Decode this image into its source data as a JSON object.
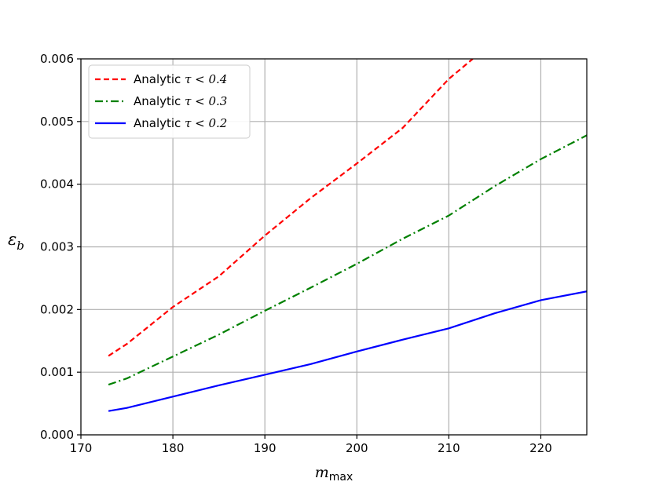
{
  "chart_data": {
    "type": "line",
    "title": "",
    "xlabel": {
      "main": "m",
      "sub": "max"
    },
    "ylabel": {
      "main": "ε",
      "sub": "b"
    },
    "xlim": [
      170,
      225
    ],
    "ylim": [
      0,
      0.006
    ],
    "xticks": [
      170,
      180,
      190,
      200,
      210,
      220
    ],
    "xtick_labels": [
      "170",
      "180",
      "190",
      "200",
      "210",
      "220"
    ],
    "yticks": [
      0,
      0.001,
      0.002,
      0.003,
      0.004,
      0.005,
      0.006
    ],
    "ytick_labels": [
      "0.000",
      "0.001",
      "0.002",
      "0.003",
      "0.004",
      "0.005",
      "0.006"
    ],
    "grid": true,
    "legend_position": "top-left",
    "series": [
      {
        "legend_prefix": "Analytic ",
        "legend_math": "τ < 0.4",
        "color": "#ff0000",
        "style": "dashed",
        "x": [
          173,
          175,
          180,
          185,
          190,
          195,
          200,
          205,
          210,
          212.6
        ],
        "y": [
          0.00126,
          0.00145,
          0.00204,
          0.00253,
          0.00318,
          0.00378,
          0.00433,
          0.0049,
          0.00568,
          0.006
        ]
      },
      {
        "legend_prefix": "Analytic ",
        "legend_math": "τ < 0.3",
        "color": "#008000",
        "style": "dashdot",
        "x": [
          173,
          175,
          180,
          185,
          190,
          195,
          200,
          205,
          210,
          215,
          220,
          225
        ],
        "y": [
          0.0008,
          0.0009,
          0.00125,
          0.0016,
          0.00198,
          0.00235,
          0.00273,
          0.00313,
          0.0035,
          0.00397,
          0.0044,
          0.00478
        ]
      },
      {
        "legend_prefix": "Analytic ",
        "legend_math": "τ < 0.2",
        "color": "#0000ff",
        "style": "solid",
        "x": [
          173,
          175,
          180,
          185,
          190,
          195,
          200,
          205,
          210,
          215,
          220,
          225
        ],
        "y": [
          0.00038,
          0.00043,
          0.00061,
          0.00079,
          0.00096,
          0.00113,
          0.00133,
          0.00152,
          0.0017,
          0.00194,
          0.00215,
          0.00229
        ]
      }
    ]
  }
}
